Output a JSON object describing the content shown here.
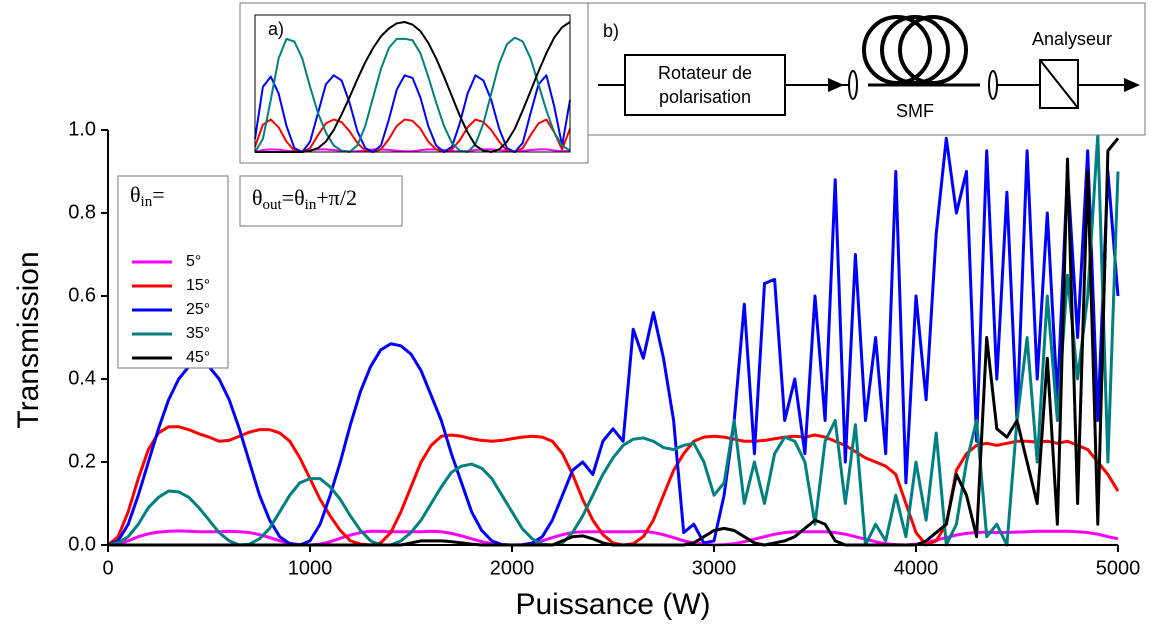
{
  "chart_data": [
    {
      "type": "line",
      "xlabel": "Puissance (W)",
      "ylabel": "Transmission",
      "xlim": [
        0,
        5000
      ],
      "ylim": [
        0,
        1
      ],
      "xticks": [
        0,
        1000,
        2000,
        3000,
        4000,
        5000
      ],
      "yticks": [
        {
          "value": 0,
          "label": "0.0"
        },
        0.2,
        0.4,
        0.6,
        0.8,
        {
          "value": 1,
          "label": "1.0"
        }
      ],
      "legend_title": [
        {
          "text": "θ"
        },
        {
          "text": "in",
          "subscript": true
        },
        {
          "text": "="
        }
      ],
      "annotation": [
        {
          "text": "θ"
        },
        {
          "text": "out",
          "subscript": true
        },
        {
          "text": "=θ"
        },
        {
          "text": "in",
          "subscript": true
        },
        {
          "text": "+π/2"
        }
      ],
      "x": [
        0,
        50,
        100,
        150,
        200,
        250,
        300,
        350,
        400,
        450,
        500,
        550,
        600,
        650,
        700,
        750,
        800,
        850,
        900,
        950,
        1000,
        1050,
        1100,
        1150,
        1200,
        1250,
        1300,
        1350,
        1400,
        1450,
        1500,
        1550,
        1600,
        1650,
        1700,
        1750,
        1800,
        1850,
        1900,
        1950,
        2000,
        2050,
        2100,
        2150,
        2200,
        2250,
        2300,
        2350,
        2400,
        2450,
        2500,
        2550,
        2600,
        2650,
        2700,
        2750,
        2800,
        2850,
        2900,
        2950,
        3000,
        3050,
        3100,
        3150,
        3200,
        3250,
        3300,
        3350,
        3400,
        3450,
        3500,
        3550,
        3600,
        3650,
        3700,
        3750,
        3800,
        3850,
        3900,
        3950,
        4000,
        4050,
        4100,
        4150,
        4200,
        4250,
        4300,
        4350,
        4400,
        4450,
        4500,
        4550,
        4600,
        4650,
        4700,
        4750,
        4800,
        4850,
        4900,
        4950,
        5000
      ],
      "series": [
        {
          "name": "5°",
          "color": "#ff00ff",
          "values": [
            0,
            0.003,
            0.01,
            0.02,
            0.027,
            0.031,
            0.033,
            0.034,
            0.033,
            0.032,
            0.032,
            0.032,
            0.033,
            0.032,
            0.03,
            0.025,
            0.018,
            0.01,
            0.004,
            0.001,
            0,
            0.002,
            0.008,
            0.016,
            0.024,
            0.03,
            0.033,
            0.033,
            0.032,
            0.032,
            0.032,
            0.032,
            0.033,
            0.032,
            0.028,
            0.022,
            0.015,
            0.008,
            0.003,
            0.001,
            0,
            0.001,
            0.004,
            0.01,
            0.018,
            0.025,
            0.03,
            0.032,
            0.032,
            0.032,
            0.032,
            0.032,
            0.032,
            0.033,
            0.03,
            0.025,
            0.018,
            0.01,
            0.005,
            0.002,
            0,
            0.001,
            0.003,
            0.008,
            0.014,
            0.02,
            0.026,
            0.03,
            0.032,
            0.032,
            0.032,
            0.032,
            0.03,
            0.026,
            0.02,
            0.014,
            0.008,
            0.003,
            0.001,
            0,
            0.002,
            0.006,
            0.012,
            0.018,
            0.024,
            0.028,
            0.03,
            0.031,
            0.03,
            0.03,
            0.031,
            0.032,
            0.033,
            0.033,
            0.033,
            0.033,
            0.032,
            0.03,
            0.026,
            0.02,
            0.015
          ]
        },
        {
          "name": "15°",
          "color": "#ff0000",
          "values": [
            0,
            0.02,
            0.08,
            0.16,
            0.23,
            0.27,
            0.285,
            0.285,
            0.278,
            0.268,
            0.26,
            0.25,
            0.252,
            0.262,
            0.272,
            0.278,
            0.278,
            0.27,
            0.25,
            0.21,
            0.16,
            0.11,
            0.07,
            0.035,
            0.01,
            0.002,
            0,
            0.005,
            0.03,
            0.08,
            0.14,
            0.2,
            0.24,
            0.262,
            0.265,
            0.262,
            0.256,
            0.252,
            0.25,
            0.252,
            0.256,
            0.26,
            0.262,
            0.26,
            0.25,
            0.22,
            0.17,
            0.11,
            0.06,
            0.025,
            0.005,
            0,
            0.003,
            0.02,
            0.06,
            0.12,
            0.18,
            0.22,
            0.25,
            0.26,
            0.262,
            0.26,
            0.255,
            0.25,
            0.25,
            0.252,
            0.256,
            0.26,
            0.262,
            0.26,
            0.265,
            0.26,
            0.25,
            0.24,
            0.225,
            0.21,
            0.2,
            0.19,
            0.17,
            0.1,
            0.03,
            0,
            0.01,
            0.05,
            0.18,
            0.22,
            0.24,
            0.245,
            0.24,
            0.245,
            0.25,
            0.25,
            0.248,
            0.25,
            0.245,
            0.25,
            0.24,
            0.23,
            0.2,
            0.17,
            0.13
          ]
        },
        {
          "name": "25°",
          "color": "#0000ff",
          "values": [
            0,
            0.01,
            0.05,
            0.12,
            0.2,
            0.28,
            0.35,
            0.4,
            0.43,
            0.435,
            0.43,
            0.4,
            0.35,
            0.28,
            0.2,
            0.12,
            0.06,
            0.02,
            0.003,
            0,
            0.01,
            0.05,
            0.12,
            0.2,
            0.29,
            0.37,
            0.43,
            0.47,
            0.485,
            0.48,
            0.46,
            0.42,
            0.36,
            0.3,
            0.22,
            0.15,
            0.08,
            0.035,
            0.01,
            0.001,
            0,
            0,
            0.005,
            0.02,
            0.06,
            0.12,
            0.18,
            0.2,
            0.17,
            0.25,
            0.28,
            0.25,
            0.52,
            0.45,
            0.56,
            0.45,
            0.3,
            0.03,
            0.05,
            0.005,
            0.01,
            0.12,
            0.3,
            0.58,
            0.22,
            0.63,
            0.64,
            0.3,
            0.4,
            0.22,
            0.6,
            0.3,
            0.88,
            0.2,
            0.7,
            0.3,
            0.5,
            0.22,
            0.9,
            0.15,
            0.6,
            0.35,
            0.75,
            0.98,
            0.8,
            0.9,
            0.25,
            0.95,
            0.4,
            0.85,
            0.3,
            0.95,
            0.4,
            0.8,
            0.35,
            0.9,
            0.5,
            0.95,
            0.3,
            0.9,
            0.6
          ]
        },
        {
          "name": "35°",
          "color": "#008080",
          "values": [
            0,
            0.005,
            0.02,
            0.05,
            0.09,
            0.115,
            0.13,
            0.128,
            0.115,
            0.09,
            0.06,
            0.03,
            0.01,
            0,
            0.002,
            0.015,
            0.04,
            0.08,
            0.12,
            0.15,
            0.16,
            0.16,
            0.14,
            0.11,
            0.07,
            0.035,
            0.01,
            0,
            0,
            0.01,
            0.03,
            0.06,
            0.1,
            0.14,
            0.175,
            0.19,
            0.195,
            0.185,
            0.16,
            0.12,
            0.08,
            0.04,
            0.015,
            0.002,
            0,
            0.005,
            0.03,
            0.07,
            0.12,
            0.17,
            0.21,
            0.24,
            0.255,
            0.258,
            0.25,
            0.235,
            0.23,
            0.24,
            0.245,
            0.2,
            0.12,
            0.15,
            0.3,
            0.1,
            0.2,
            0.1,
            0.22,
            0.26,
            0.25,
            0.2,
            0.05,
            0.25,
            0.3,
            0.1,
            0.29,
            0,
            0.05,
            0.01,
            0.12,
            0.02,
            0.2,
            0.06,
            0.27,
            0,
            0.05,
            0.2,
            0.3,
            0.02,
            0.05,
            0,
            0.3,
            0.5,
            0.2,
            0.6,
            0.3,
            0.65,
            0.4,
            0.6,
            0.99,
            0.2,
            0.9
          ]
        },
        {
          "name": "45°",
          "color": "#000000",
          "values": [
            0,
            0,
            0,
            0,
            0,
            0,
            0,
            0,
            0,
            0,
            0,
            0,
            0,
            0,
            0,
            0,
            0,
            0,
            0,
            0,
            0,
            0,
            0,
            0,
            0,
            0,
            0,
            0,
            0,
            0,
            0.005,
            0.01,
            0.01,
            0.01,
            0.008,
            0.005,
            0.002,
            0,
            0,
            0,
            0,
            0,
            0,
            0,
            0,
            0.01,
            0.02,
            0.022,
            0.015,
            0.005,
            0,
            0,
            0,
            0,
            0,
            0,
            0,
            0,
            0.005,
            0.02,
            0.035,
            0.04,
            0.035,
            0.02,
            0.005,
            0,
            0.005,
            0.01,
            0.02,
            0.04,
            0.06,
            0.05,
            0.01,
            0,
            0,
            0,
            0,
            0,
            0,
            0,
            0,
            0.01,
            0.03,
            0.05,
            0.17,
            0.12,
            0.02,
            0.5,
            0.28,
            0.26,
            0.3,
            0.2,
            0.1,
            0.45,
            0.05,
            0.93,
            0.1,
            0.9,
            0.05,
            0.95,
            0.98
          ]
        }
      ]
    },
    {
      "type": "line",
      "label": "a)",
      "xlim": [
        0,
        1
      ],
      "ylim": [
        0,
        1
      ],
      "x": [
        0,
        0.025,
        0.05,
        0.075,
        0.1,
        0.125,
        0.15,
        0.175,
        0.2,
        0.225,
        0.25,
        0.275,
        0.3,
        0.325,
        0.35,
        0.375,
        0.4,
        0.425,
        0.45,
        0.475,
        0.5,
        0.525,
        0.55,
        0.575,
        0.6,
        0.625,
        0.65,
        0.675,
        0.7,
        0.725,
        0.75,
        0.775,
        0.8,
        0.825,
        0.85,
        0.875,
        0.9,
        0.925,
        0.95,
        0.975,
        1
      ],
      "series": [
        {
          "color": "#ff00ff",
          "values": [
            0,
            0.015,
            0.02,
            0.018,
            0.01,
            0.005,
            0.005,
            0.012,
            0.02,
            0.02,
            0.015,
            0.01,
            0.005,
            0.005,
            0.012,
            0.02,
            0.02,
            0.016,
            0.01,
            0.005,
            0.006,
            0.014,
            0.02,
            0.02,
            0.015,
            0.008,
            0.005,
            0.008,
            0.015,
            0.02,
            0.02,
            0.015,
            0.008,
            0.005,
            0.008,
            0.015,
            0.02,
            0.02,
            0.012,
            0.006,
            0.01
          ]
        },
        {
          "color": "#ff0000",
          "values": [
            0.04,
            0.21,
            0.25,
            0.19,
            0.08,
            0.01,
            0,
            0.03,
            0.13,
            0.22,
            0.25,
            0.23,
            0.16,
            0.07,
            0.01,
            0,
            0.02,
            0.1,
            0.2,
            0.25,
            0.24,
            0.18,
            0.08,
            0.02,
            0,
            0.02,
            0.09,
            0.19,
            0.25,
            0.23,
            0.17,
            0.08,
            0.01,
            0,
            0.03,
            0.13,
            0.22,
            0.25,
            0.15,
            0.02,
            0.18
          ]
        },
        {
          "color": "#0000ff",
          "values": [
            0.1,
            0.5,
            0.58,
            0.45,
            0.2,
            0.03,
            0,
            0.08,
            0.3,
            0.52,
            0.59,
            0.55,
            0.38,
            0.16,
            0.03,
            0,
            0.05,
            0.25,
            0.48,
            0.59,
            0.57,
            0.42,
            0.2,
            0.05,
            0,
            0.04,
            0.22,
            0.45,
            0.59,
            0.55,
            0.4,
            0.18,
            0.03,
            0,
            0.07,
            0.3,
            0.52,
            0.59,
            0.35,
            0.05,
            0.4
          ]
        },
        {
          "color": "#008080",
          "values": [
            0,
            0.1,
            0.4,
            0.72,
            0.87,
            0.85,
            0.72,
            0.5,
            0.3,
            0.15,
            0.05,
            0.01,
            0,
            0.05,
            0.2,
            0.42,
            0.64,
            0.8,
            0.87,
            0.87,
            0.86,
            0.76,
            0.58,
            0.38,
            0.2,
            0.07,
            0.01,
            0,
            0.06,
            0.22,
            0.45,
            0.68,
            0.83,
            0.88,
            0.85,
            0.72,
            0.52,
            0.32,
            0.15,
            0.05,
            0.01
          ]
        },
        {
          "color": "#000000",
          "values": [
            0,
            0,
            0,
            0,
            0,
            0,
            0,
            0.01,
            0.03,
            0.08,
            0.17,
            0.29,
            0.42,
            0.56,
            0.69,
            0.8,
            0.89,
            0.95,
            0.99,
            1,
            0.98,
            0.93,
            0.84,
            0.72,
            0.58,
            0.43,
            0.28,
            0.15,
            0.05,
            0.01,
            0,
            0.02,
            0.08,
            0.18,
            0.32,
            0.47,
            0.62,
            0.76,
            0.88,
            0.96,
            1
          ]
        }
      ]
    }
  ],
  "diagram": {
    "label": "b)",
    "rotator": [
      "Rotateur de",
      "polarisation"
    ],
    "fiber": "SMF",
    "analyser": "Analyseur"
  }
}
